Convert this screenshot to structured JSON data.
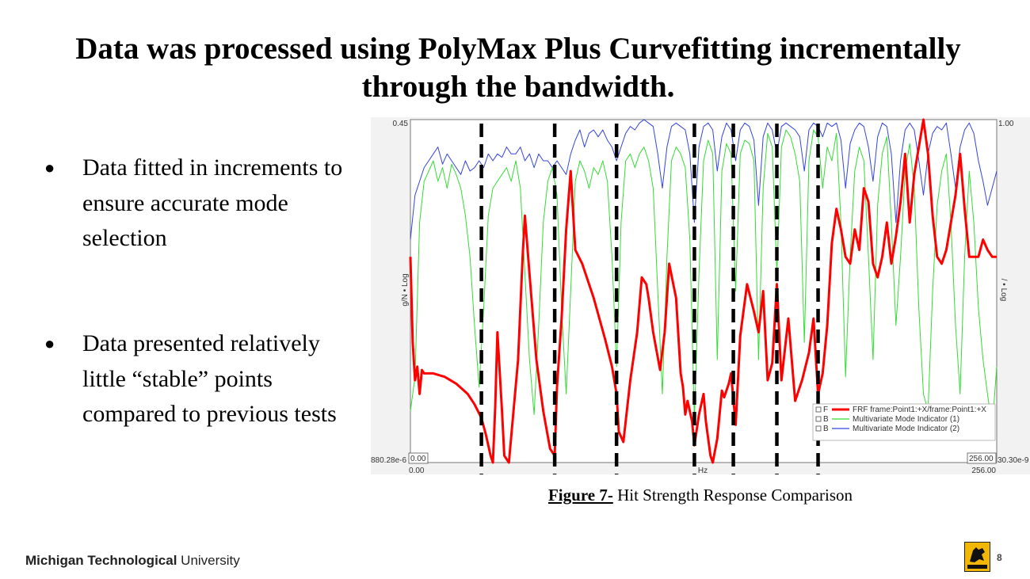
{
  "slide": {
    "title": "Data was processed using PolyMax Plus Curvefitting incrementally through the bandwidth.",
    "bullets": [
      {
        "marker": "●",
        "text": "Data fitted in increments to ensure accurate mode selection"
      },
      {
        "marker": "●",
        "text": "Data presented relatively little “stable” points compared to previous tests"
      }
    ],
    "caption": {
      "label": "Figure 7-",
      "text": " Hit Strength Response Comparison"
    },
    "footer": {
      "bold": "Michigan Technological",
      "regular": " University"
    },
    "page_number": "8",
    "badge_icon": "husky-logo-icon",
    "badge_color": "#f2b705"
  },
  "chart_data": {
    "type": "line",
    "title": "",
    "xlabel": "Hz",
    "ylabel_left": "g/N • Log",
    "ylabel_right": "/ • Log",
    "xlim": [
      0,
      256
    ],
    "x_start_label": "0.00",
    "x_end_label": "256.00",
    "x_start_box": "0.00",
    "x_end_box": "256.00",
    "y_left_top_label": "0.45",
    "y_left_bottom_label": "880.28e-6",
    "y_right_top_label": "1.00",
    "y_right_bottom_label": "30.30e-9",
    "y_scale": "log",
    "grid": false,
    "legend_position": "bottom-right",
    "legend": [
      {
        "prefix": "F",
        "name": "FRF frame:Point1:+X/frame:Point1:+X",
        "color": "#ff0000"
      },
      {
        "prefix": "B",
        "name": "Multivariate Mode Indicator (1)",
        "color": "#33dd33"
      },
      {
        "prefix": "B",
        "name": "Multivariate Mode Indicator (2)",
        "color": "#3344dd"
      }
    ],
    "increment_boundaries_hz": [
      31,
      63,
      90,
      124,
      141,
      160,
      178
    ],
    "series": [
      {
        "name": "FRF frame:Point1:+X/frame:Point1:+X",
        "color": "#ff0000",
        "y_fraction": true,
        "x": [
          0,
          1,
          2,
          3,
          4,
          5,
          6,
          10,
          15,
          20,
          25,
          28,
          31,
          33,
          35,
          36,
          37,
          38,
          40,
          41,
          43,
          47,
          49,
          50,
          52,
          55,
          58,
          61,
          63,
          64,
          66,
          68,
          70,
          72,
          75,
          80,
          85,
          88,
          90,
          91,
          93,
          96,
          99,
          101,
          103,
          104,
          106,
          109,
          111,
          113,
          116,
          118,
          119,
          120,
          121,
          123,
          124,
          126,
          128,
          129,
          131,
          132,
          134,
          136,
          137,
          139,
          140,
          142,
          144,
          147,
          150,
          152,
          154,
          156,
          158,
          160,
          162,
          165,
          168,
          171,
          174,
          176,
          178,
          180,
          182,
          184,
          186,
          188,
          190,
          192,
          194,
          196,
          198,
          200,
          202,
          204,
          206,
          208,
          210,
          212,
          214,
          216,
          218,
          220,
          222,
          224,
          226,
          228,
          230,
          232,
          234,
          236,
          238,
          240,
          242,
          244,
          246,
          248,
          250,
          252,
          254,
          256
        ],
        "y": [
          0.6,
          0.35,
          0.24,
          0.28,
          0.2,
          0.27,
          0.26,
          0.26,
          0.25,
          0.23,
          0.2,
          0.17,
          0.13,
          0.08,
          0.02,
          0.0,
          0.16,
          0.38,
          0.15,
          0.02,
          0.0,
          0.3,
          0.6,
          0.72,
          0.55,
          0.3,
          0.15,
          0.04,
          0.02,
          0.22,
          0.42,
          0.68,
          0.85,
          0.62,
          0.58,
          0.48,
          0.36,
          0.28,
          0.2,
          0.09,
          0.06,
          0.24,
          0.38,
          0.54,
          0.52,
          0.48,
          0.38,
          0.27,
          0.38,
          0.58,
          0.48,
          0.26,
          0.22,
          0.14,
          0.18,
          0.12,
          0.05,
          0.14,
          0.2,
          0.12,
          0.02,
          0.0,
          0.07,
          0.21,
          0.19,
          0.23,
          0.26,
          0.11,
          0.37,
          0.52,
          0.44,
          0.38,
          0.5,
          0.24,
          0.29,
          0.52,
          0.24,
          0.42,
          0.18,
          0.24,
          0.32,
          0.42,
          0.2,
          0.26,
          0.4,
          0.64,
          0.74,
          0.68,
          0.6,
          0.58,
          0.68,
          0.62,
          0.8,
          0.76,
          0.58,
          0.54,
          0.6,
          0.7,
          0.58,
          0.66,
          0.76,
          0.9,
          0.7,
          0.84,
          0.92,
          1.0,
          0.9,
          0.72,
          0.6,
          0.58,
          0.62,
          0.7,
          0.78,
          0.9,
          0.74,
          0.6,
          0.6,
          0.6,
          0.65,
          0.62,
          0.6,
          0.6
        ]
      },
      {
        "name": "Multivariate Mode Indicator (1)",
        "color": "#33dd33",
        "y_fraction": true,
        "x": [
          0,
          2,
          4,
          6,
          8,
          10,
          12,
          14,
          16,
          18,
          20,
          22,
          24,
          26,
          28,
          30,
          32,
          34,
          36,
          38,
          40,
          42,
          44,
          46,
          48,
          50,
          52,
          54,
          56,
          58,
          60,
          62,
          64,
          66,
          68,
          70,
          72,
          74,
          76,
          78,
          80,
          82,
          84,
          86,
          88,
          90,
          92,
          94,
          96,
          98,
          100,
          102,
          104,
          106,
          108,
          110,
          112,
          114,
          116,
          118,
          120,
          122,
          124,
          126,
          128,
          130,
          132,
          134,
          136,
          138,
          140,
          142,
          144,
          146,
          148,
          150,
          152,
          154,
          156,
          158,
          160,
          162,
          164,
          166,
          168,
          170,
          172,
          174,
          176,
          178,
          180,
          182,
          184,
          186,
          188,
          190,
          192,
          194,
          196,
          198,
          200,
          202,
          204,
          206,
          208,
          210,
          212,
          214,
          216,
          218,
          220,
          222,
          224,
          226,
          228,
          230,
          232,
          234,
          236,
          238,
          240,
          242,
          244,
          246,
          248,
          250,
          252,
          254,
          256
        ],
        "y": [
          0.15,
          0.25,
          0.7,
          0.82,
          0.85,
          0.88,
          0.82,
          0.86,
          0.8,
          0.87,
          0.84,
          0.8,
          0.72,
          0.6,
          0.4,
          0.22,
          0.45,
          0.72,
          0.8,
          0.82,
          0.84,
          0.86,
          0.82,
          0.88,
          0.8,
          0.55,
          0.3,
          0.14,
          0.4,
          0.7,
          0.82,
          0.86,
          0.78,
          0.45,
          0.2,
          0.5,
          0.82,
          0.88,
          0.85,
          0.8,
          0.86,
          0.84,
          0.88,
          0.82,
          0.6,
          0.28,
          0.7,
          0.88,
          0.9,
          0.86,
          0.9,
          0.92,
          0.88,
          0.8,
          0.5,
          0.2,
          0.6,
          0.88,
          0.92,
          0.9,
          0.86,
          0.65,
          0.12,
          0.55,
          0.88,
          0.94,
          0.9,
          0.3,
          0.85,
          0.93,
          0.9,
          0.5,
          0.9,
          0.94,
          0.93,
          0.88,
          0.3,
          0.8,
          0.96,
          0.92,
          0.55,
          0.92,
          0.97,
          0.95,
          0.9,
          0.82,
          0.35,
          0.88,
          0.97,
          0.95,
          0.8,
          0.92,
          0.88,
          0.96,
          0.7,
          0.25,
          0.6,
          0.85,
          0.92,
          0.88,
          0.6,
          0.3,
          0.75,
          0.9,
          0.95,
          0.7,
          0.4,
          0.6,
          0.85,
          0.93,
          0.8,
          0.45,
          0.2,
          0.15,
          0.5,
          0.75,
          0.85,
          0.9,
          0.7,
          0.4,
          0.2,
          0.6,
          0.85,
          0.7,
          0.45,
          0.3,
          0.2,
          0.1,
          0.28
        ]
      },
      {
        "name": "Multivariate Mode Indicator (2)",
        "color": "#3344dd",
        "y_fraction": true,
        "x": [
          0,
          2,
          4,
          6,
          8,
          10,
          12,
          14,
          16,
          18,
          20,
          22,
          24,
          26,
          28,
          30,
          32,
          34,
          36,
          38,
          40,
          42,
          44,
          46,
          48,
          50,
          52,
          54,
          56,
          58,
          60,
          62,
          64,
          66,
          68,
          70,
          72,
          74,
          76,
          78,
          80,
          82,
          84,
          86,
          88,
          90,
          92,
          94,
          96,
          98,
          100,
          102,
          104,
          106,
          108,
          110,
          112,
          114,
          116,
          118,
          120,
          122,
          124,
          126,
          128,
          130,
          132,
          134,
          136,
          138,
          140,
          142,
          144,
          146,
          148,
          150,
          152,
          154,
          156,
          158,
          160,
          162,
          164,
          166,
          168,
          170,
          172,
          174,
          176,
          178,
          180,
          182,
          184,
          186,
          188,
          190,
          192,
          194,
          196,
          198,
          200,
          202,
          204,
          206,
          208,
          210,
          212,
          214,
          216,
          218,
          220,
          222,
          224,
          226,
          228,
          230,
          232,
          234,
          236,
          238,
          240,
          242,
          244,
          246,
          248,
          250,
          252,
          254,
          256
        ],
        "y": [
          0.65,
          0.78,
          0.82,
          0.86,
          0.88,
          0.9,
          0.92,
          0.87,
          0.9,
          0.88,
          0.86,
          0.84,
          0.88,
          0.85,
          0.86,
          0.88,
          0.86,
          0.9,
          0.88,
          0.9,
          0.89,
          0.92,
          0.9,
          0.9,
          0.92,
          0.88,
          0.9,
          0.86,
          0.9,
          0.88,
          0.88,
          0.86,
          0.88,
          0.86,
          0.84,
          0.9,
          0.94,
          0.97,
          0.92,
          0.96,
          0.97,
          0.95,
          0.97,
          0.94,
          0.92,
          0.88,
          0.92,
          0.96,
          0.98,
          0.97,
          0.99,
          1.0,
          0.99,
          0.98,
          0.9,
          0.8,
          0.92,
          0.98,
          0.99,
          0.98,
          0.97,
          0.9,
          0.7,
          0.92,
          0.98,
          0.99,
          0.97,
          0.85,
          0.95,
          0.99,
          0.97,
          0.88,
          0.97,
          0.99,
          0.98,
          0.94,
          0.75,
          0.95,
          0.99,
          0.97,
          0.9,
          0.98,
          0.99,
          0.98,
          0.97,
          0.95,
          0.85,
          0.97,
          0.99,
          0.98,
          0.95,
          0.99,
          0.98,
          0.99,
          0.94,
          0.8,
          0.93,
          0.97,
          0.99,
          0.98,
          0.92,
          0.82,
          0.95,
          0.99,
          0.98,
          0.9,
          0.7,
          0.88,
          0.97,
          0.99,
          0.97,
          0.88,
          0.78,
          0.9,
          0.96,
          0.98,
          0.97,
          0.99,
          0.9,
          0.8,
          0.92,
          0.97,
          0.99,
          0.96,
          0.88,
          0.82,
          0.75,
          0.8,
          0.85
        ]
      }
    ]
  }
}
